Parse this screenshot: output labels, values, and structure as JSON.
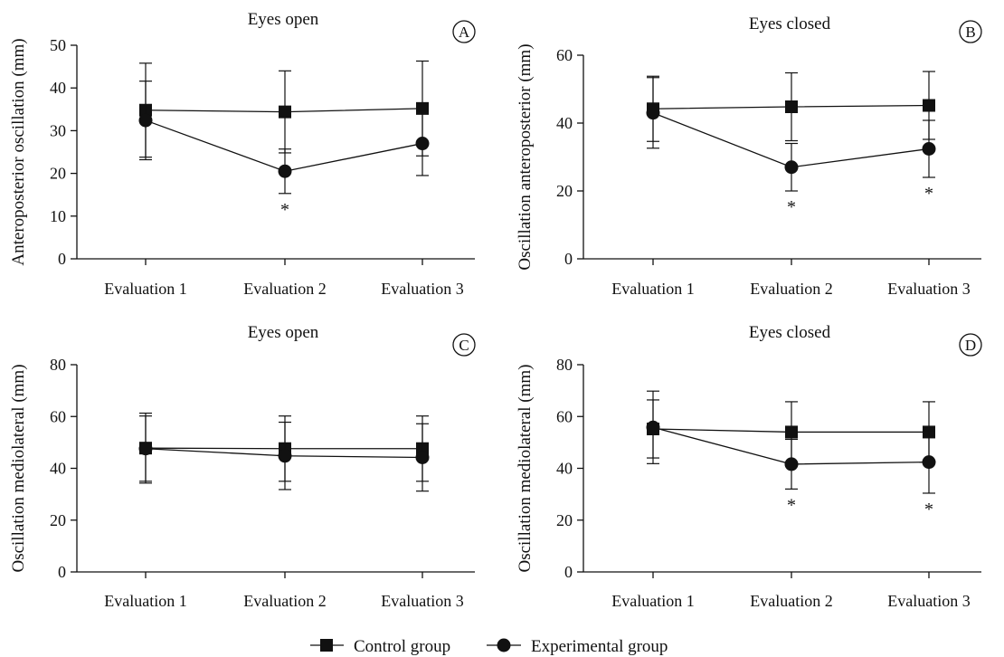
{
  "legend": {
    "entries": [
      {
        "label": "Control group",
        "marker": "square"
      },
      {
        "label": "Experimental group",
        "marker": "circle"
      }
    ]
  },
  "chart_data": [
    {
      "type": "line",
      "panel_letter": "A",
      "title": "Eyes open",
      "ylabel": "Anteroposterior oscillation (mm)",
      "xlabel": "",
      "categories": [
        "Evaluation 1",
        "Evaluation 2",
        "Evaluation 3"
      ],
      "ylim": [
        0,
        50
      ],
      "yticks": [
        0,
        10,
        20,
        30,
        40,
        50
      ],
      "series": [
        {
          "name": "Control group",
          "marker": "square",
          "values": [
            34.8,
            34.4,
            35.2
          ],
          "err": [
            11.0,
            9.6,
            11.1
          ]
        },
        {
          "name": "Experimental group",
          "marker": "circle",
          "values": [
            32.4,
            20.5,
            27.0
          ],
          "err": [
            9.2,
            5.2,
            7.5
          ]
        }
      ],
      "significance": [
        "",
        "*",
        ""
      ]
    },
    {
      "type": "line",
      "panel_letter": "B",
      "title": "Eyes closed",
      "ylabel": "Oscillation anteroposterior (mm)",
      "xlabel": "",
      "categories": [
        "Evaluation 1",
        "Evaluation 2",
        "Evaluation 3"
      ],
      "ylim": [
        0,
        60
      ],
      "yticks": [
        0,
        20,
        40,
        60
      ],
      "series": [
        {
          "name": "Control group",
          "marker": "square",
          "values": [
            44.2,
            44.8,
            45.2
          ],
          "err": [
            9.6,
            10.0,
            10.0
          ]
        },
        {
          "name": "Experimental group",
          "marker": "circle",
          "values": [
            43.0,
            27.0,
            32.4
          ],
          "err": [
            10.4,
            7.0,
            8.4
          ]
        }
      ],
      "significance": [
        "",
        "*",
        "*"
      ]
    },
    {
      "type": "line",
      "panel_letter": "C",
      "title": "Eyes open",
      "ylabel": "Oscillation mediolateral (mm)",
      "xlabel": "",
      "categories": [
        "Evaluation 1",
        "Evaluation 2",
        "Evaluation 3"
      ],
      "ylim": [
        0,
        80
      ],
      "yticks": [
        0,
        20,
        40,
        60,
        80
      ],
      "series": [
        {
          "name": "Control group",
          "marker": "square",
          "values": [
            47.8,
            47.6,
            47.6
          ],
          "err": [
            13.5,
            12.6,
            12.6
          ]
        },
        {
          "name": "Experimental group",
          "marker": "circle",
          "values": [
            47.6,
            44.8,
            44.2
          ],
          "err": [
            12.6,
            13.0,
            13.0
          ]
        }
      ],
      "significance": [
        "",
        "",
        ""
      ]
    },
    {
      "type": "line",
      "panel_letter": "D",
      "title": "Eyes closed",
      "ylabel": "Oscillation mediolateral (mm)",
      "xlabel": "",
      "categories": [
        "Evaluation 1",
        "Evaluation 2",
        "Evaluation 3"
      ],
      "ylim": [
        0,
        80
      ],
      "yticks": [
        0,
        20,
        40,
        60,
        80
      ],
      "series": [
        {
          "name": "Control group",
          "marker": "square",
          "values": [
            55.2,
            54.0,
            54.0
          ],
          "err": [
            11.2,
            11.7,
            11.7
          ]
        },
        {
          "name": "Experimental group",
          "marker": "circle",
          "values": [
            55.8,
            41.6,
            42.4
          ],
          "err": [
            14.0,
            9.6,
            12.0
          ]
        }
      ],
      "significance": [
        "",
        "*",
        "*"
      ]
    }
  ]
}
